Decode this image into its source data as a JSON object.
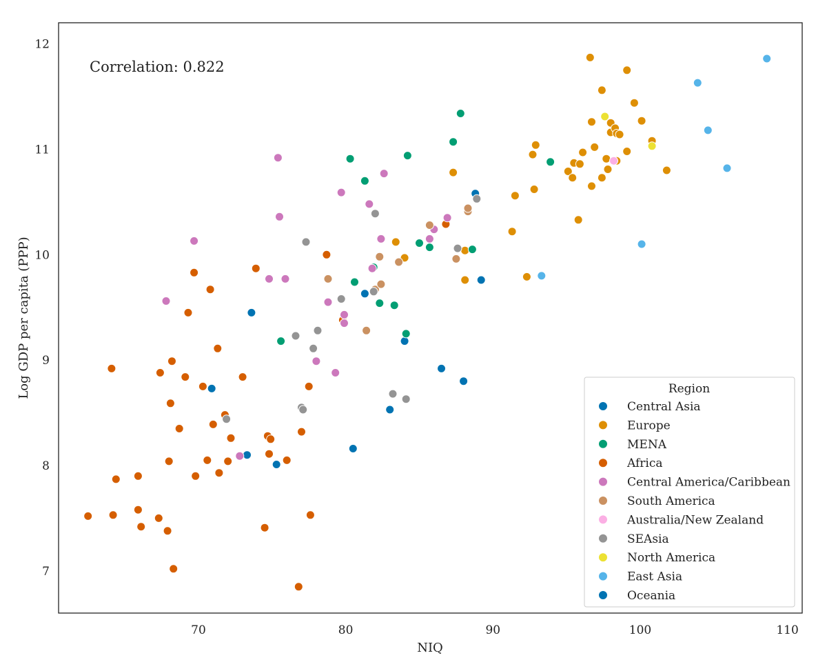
{
  "chart_data": {
    "type": "scatter",
    "title": "",
    "xlabel": "NIQ",
    "ylabel": "Log GDP per capita (PPP)",
    "xlim": [
      60.5,
      111
    ],
    "ylim": [
      6.6,
      12.2
    ],
    "x_ticks": [
      70,
      80,
      90,
      100,
      110
    ],
    "y_ticks": [
      7,
      8,
      9,
      10,
      11,
      12
    ],
    "grid": false,
    "annotation": "Correlation: 0.822",
    "legend": {
      "title": "Region",
      "placement": "lower-right"
    },
    "series": [
      {
        "name": "Central Asia",
        "color": "#0173b2",
        "points": [
          [
            70.9,
            8.73
          ],
          [
            73.3,
            8.1
          ],
          [
            73.6,
            9.45
          ],
          [
            75.3,
            8.01
          ],
          [
            81.3,
            9.63
          ],
          [
            83.0,
            8.53
          ],
          [
            84.0,
            9.18
          ],
          [
            86.5,
            8.92
          ],
          [
            88.0,
            8.8
          ],
          [
            88.8,
            10.58
          ],
          [
            89.2,
            9.76
          ]
        ]
      },
      {
        "name": "Europe",
        "color": "#de8f05",
        "points": [
          [
            83.4,
            10.12
          ],
          [
            84.0,
            9.97
          ],
          [
            87.3,
            10.78
          ],
          [
            88.1,
            10.04
          ],
          [
            88.1,
            9.76
          ],
          [
            91.3,
            10.22
          ],
          [
            91.5,
            10.56
          ],
          [
            92.3,
            9.79
          ],
          [
            92.7,
            10.95
          ],
          [
            92.8,
            10.62
          ],
          [
            92.9,
            11.04
          ],
          [
            95.1,
            10.79
          ],
          [
            95.4,
            10.73
          ],
          [
            95.5,
            10.87
          ],
          [
            95.8,
            10.33
          ],
          [
            95.9,
            10.86
          ],
          [
            96.1,
            10.97
          ],
          [
            96.6,
            11.87
          ],
          [
            96.7,
            11.26
          ],
          [
            96.7,
            10.65
          ],
          [
            96.9,
            11.02
          ],
          [
            97.4,
            11.56
          ],
          [
            97.4,
            10.73
          ],
          [
            97.7,
            10.91
          ],
          [
            97.8,
            10.81
          ],
          [
            98.0,
            11.25
          ],
          [
            98.0,
            11.16
          ],
          [
            98.3,
            11.2
          ],
          [
            98.4,
            10.89
          ],
          [
            98.4,
            11.15
          ],
          [
            98.6,
            11.14
          ],
          [
            99.1,
            11.75
          ],
          [
            99.1,
            10.98
          ],
          [
            99.6,
            11.44
          ],
          [
            100.1,
            11.27
          ],
          [
            100.8,
            11.08
          ],
          [
            101.8,
            10.8
          ]
        ]
      },
      {
        "name": "MENA",
        "color": "#029e73",
        "points": [
          [
            75.6,
            9.18
          ],
          [
            80.3,
            10.91
          ],
          [
            80.6,
            9.74
          ],
          [
            81.3,
            10.7
          ],
          [
            81.9,
            9.88
          ],
          [
            82.3,
            9.54
          ],
          [
            83.3,
            9.52
          ],
          [
            84.1,
            9.25
          ],
          [
            84.2,
            10.94
          ],
          [
            85.0,
            10.11
          ],
          [
            85.7,
            10.07
          ],
          [
            87.3,
            11.07
          ],
          [
            87.8,
            11.34
          ],
          [
            88.6,
            10.05
          ],
          [
            93.9,
            10.88
          ]
        ]
      },
      {
        "name": "Africa",
        "color": "#d55e00",
        "points": [
          [
            62.5,
            7.52
          ],
          [
            64.1,
            8.92
          ],
          [
            64.2,
            7.53
          ],
          [
            64.4,
            7.87
          ],
          [
            65.9,
            7.58
          ],
          [
            65.9,
            7.9
          ],
          [
            66.1,
            7.42
          ],
          [
            67.3,
            7.5
          ],
          [
            67.4,
            8.88
          ],
          [
            67.9,
            7.38
          ],
          [
            68.0,
            8.04
          ],
          [
            68.1,
            8.59
          ],
          [
            68.2,
            8.99
          ],
          [
            68.3,
            7.02
          ],
          [
            68.7,
            8.35
          ],
          [
            69.1,
            8.84
          ],
          [
            69.3,
            9.45
          ],
          [
            69.7,
            9.83
          ],
          [
            69.8,
            7.9
          ],
          [
            70.3,
            8.75
          ],
          [
            70.6,
            8.05
          ],
          [
            70.8,
            9.67
          ],
          [
            71.0,
            8.39
          ],
          [
            71.3,
            9.11
          ],
          [
            71.4,
            7.93
          ],
          [
            71.8,
            8.48
          ],
          [
            72.0,
            8.04
          ],
          [
            72.2,
            8.26
          ],
          [
            73.0,
            8.84
          ],
          [
            73.9,
            9.87
          ],
          [
            74.5,
            7.41
          ],
          [
            74.7,
            8.28
          ],
          [
            74.8,
            8.11
          ],
          [
            74.9,
            8.25
          ],
          [
            76.0,
            8.05
          ],
          [
            76.8,
            6.85
          ],
          [
            77.0,
            8.32
          ],
          [
            77.5,
            8.75
          ],
          [
            77.6,
            7.53
          ],
          [
            78.7,
            10.0
          ],
          [
            79.8,
            9.38
          ],
          [
            86.8,
            10.29
          ]
        ]
      },
      {
        "name": "Central America/Caribbean",
        "color": "#cc78bc",
        "points": [
          [
            67.8,
            9.56
          ],
          [
            69.7,
            10.13
          ],
          [
            72.8,
            8.09
          ],
          [
            74.8,
            9.77
          ],
          [
            75.4,
            10.92
          ],
          [
            75.5,
            10.36
          ],
          [
            75.9,
            9.77
          ],
          [
            78.0,
            8.99
          ],
          [
            78.8,
            9.55
          ],
          [
            79.3,
            8.88
          ],
          [
            79.7,
            10.59
          ],
          [
            79.9,
            9.43
          ],
          [
            79.9,
            9.35
          ],
          [
            81.6,
            10.48
          ],
          [
            81.8,
            9.87
          ],
          [
            82.4,
            10.15
          ],
          [
            82.6,
            10.77
          ],
          [
            85.7,
            10.15
          ],
          [
            86.0,
            10.24
          ],
          [
            86.9,
            10.35
          ]
        ]
      },
      {
        "name": "South America",
        "color": "#ca9161",
        "points": [
          [
            78.8,
            9.77
          ],
          [
            81.4,
            9.28
          ],
          [
            82.0,
            9.67
          ],
          [
            82.3,
            9.98
          ],
          [
            82.4,
            9.72
          ],
          [
            83.6,
            9.93
          ],
          [
            85.7,
            10.28
          ],
          [
            87.5,
            9.96
          ],
          [
            88.3,
            10.41
          ],
          [
            88.3,
            10.44
          ]
        ]
      },
      {
        "name": "Australia/New Zealand",
        "color": "#fbafe4",
        "points": [
          [
            98.2,
            10.89
          ]
        ]
      },
      {
        "name": "SEAsia",
        "color": "#949494",
        "points": [
          [
            71.9,
            8.44
          ],
          [
            76.6,
            9.23
          ],
          [
            77.0,
            8.55
          ],
          [
            77.1,
            8.53
          ],
          [
            77.3,
            10.12
          ],
          [
            77.8,
            9.11
          ],
          [
            78.1,
            9.28
          ],
          [
            79.7,
            9.58
          ],
          [
            81.9,
            9.65
          ],
          [
            82.0,
            10.39
          ],
          [
            83.2,
            8.68
          ],
          [
            84.1,
            8.63
          ],
          [
            87.6,
            10.06
          ],
          [
            88.9,
            10.53
          ]
        ]
      },
      {
        "name": "North America",
        "color": "#ece133",
        "points": [
          [
            97.6,
            11.31
          ],
          [
            100.8,
            11.03
          ]
        ]
      },
      {
        "name": "East Asia",
        "color": "#56b4e9",
        "points": [
          [
            93.3,
            9.8
          ],
          [
            100.1,
            10.1
          ],
          [
            103.9,
            11.63
          ],
          [
            104.6,
            11.18
          ],
          [
            105.9,
            10.82
          ],
          [
            108.6,
            11.86
          ]
        ]
      },
      {
        "name": "Oceania",
        "color": "#0173b2",
        "points": [
          [
            80.5,
            8.16
          ]
        ]
      }
    ]
  }
}
